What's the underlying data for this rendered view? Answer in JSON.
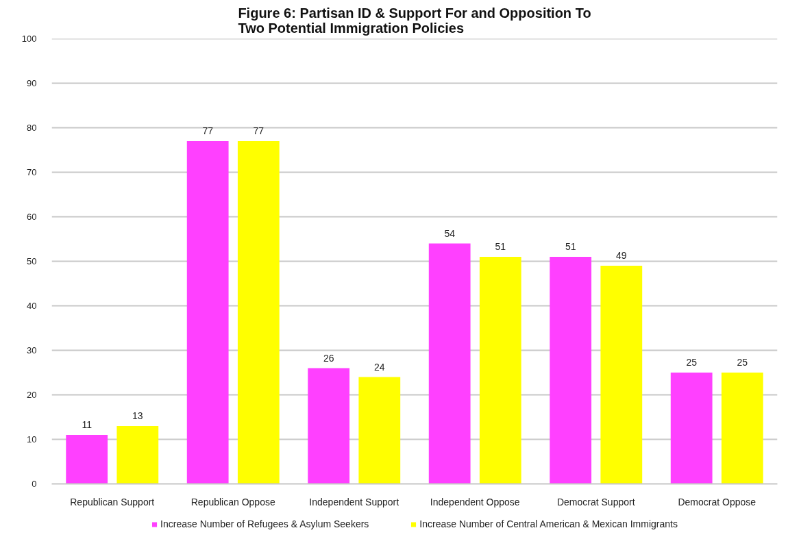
{
  "chart_data": {
    "type": "bar",
    "title": "Figure 6: Partisan ID & Support For and Opposition To\nTwo Potential Immigration Policies",
    "categories": [
      "Republican Support",
      "Republican Oppose",
      "Independent Support",
      "Independent Oppose",
      "Democrat Support",
      "Democrat Oppose"
    ],
    "series": [
      {
        "name": "Increase Number of Refugees & Asylum Seekers",
        "color": "#ff40ff",
        "values": [
          11,
          77,
          26,
          54,
          51,
          25
        ]
      },
      {
        "name": "Increase Number of Central American & Mexican Immigrants",
        "color": "#ffff00",
        "values": [
          13,
          77,
          24,
          51,
          49,
          25
        ]
      }
    ],
    "ylim": [
      0,
      100
    ],
    "yticks": [
      0,
      10,
      20,
      30,
      40,
      50,
      60,
      70,
      80,
      90,
      100
    ],
    "grid": "y",
    "legend": "bottom",
    "data_labels": true
  }
}
